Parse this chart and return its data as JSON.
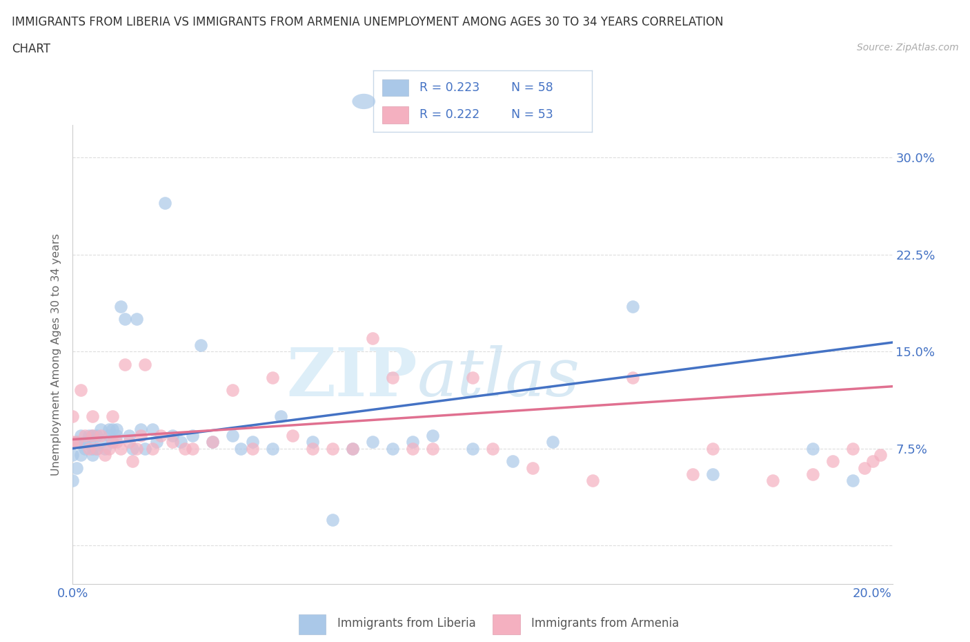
{
  "title_line1": "IMMIGRANTS FROM LIBERIA VS IMMIGRANTS FROM ARMENIA UNEMPLOYMENT AMONG AGES 30 TO 34 YEARS CORRELATION",
  "title_line2": "CHART",
  "source": "Source: ZipAtlas.com",
  "ylabel": "Unemployment Among Ages 30 to 34 years",
  "xlim": [
    0.0,
    0.205
  ],
  "ylim": [
    -0.03,
    0.325
  ],
  "yticks": [
    0.0,
    0.075,
    0.15,
    0.225,
    0.3
  ],
  "ytick_labels": [
    "",
    "7.5%",
    "15.0%",
    "22.5%",
    "30.0%"
  ],
  "liberia_color": "#aac8e8",
  "armenia_color": "#f4b0c0",
  "liberia_line_color": "#4472c4",
  "armenia_line_color": "#e07090",
  "legend_text_color": "#4472c4",
  "liberia_scatter_x": [
    0.0,
    0.0,
    0.001,
    0.001,
    0.002,
    0.002,
    0.003,
    0.003,
    0.004,
    0.004,
    0.005,
    0.005,
    0.005,
    0.006,
    0.006,
    0.007,
    0.007,
    0.008,
    0.009,
    0.009,
    0.01,
    0.01,
    0.011,
    0.011,
    0.012,
    0.013,
    0.014,
    0.015,
    0.016,
    0.017,
    0.018,
    0.02,
    0.021,
    0.023,
    0.025,
    0.027,
    0.03,
    0.032,
    0.035,
    0.04,
    0.042,
    0.045,
    0.05,
    0.052,
    0.06,
    0.065,
    0.07,
    0.075,
    0.08,
    0.085,
    0.09,
    0.1,
    0.11,
    0.12,
    0.14,
    0.16,
    0.185,
    0.195
  ],
  "liberia_scatter_y": [
    0.05,
    0.07,
    0.08,
    0.06,
    0.07,
    0.085,
    0.08,
    0.075,
    0.08,
    0.085,
    0.07,
    0.075,
    0.085,
    0.075,
    0.085,
    0.08,
    0.09,
    0.075,
    0.085,
    0.09,
    0.08,
    0.09,
    0.085,
    0.09,
    0.185,
    0.175,
    0.085,
    0.075,
    0.175,
    0.09,
    0.075,
    0.09,
    0.08,
    0.265,
    0.085,
    0.08,
    0.085,
    0.155,
    0.08,
    0.085,
    0.075,
    0.08,
    0.075,
    0.1,
    0.08,
    0.02,
    0.075,
    0.08,
    0.075,
    0.08,
    0.085,
    0.075,
    0.065,
    0.08,
    0.185,
    0.055,
    0.075,
    0.05
  ],
  "armenia_scatter_x": [
    0.0,
    0.0,
    0.001,
    0.002,
    0.003,
    0.004,
    0.005,
    0.005,
    0.006,
    0.007,
    0.008,
    0.009,
    0.01,
    0.01,
    0.011,
    0.012,
    0.013,
    0.014,
    0.015,
    0.016,
    0.017,
    0.018,
    0.02,
    0.022,
    0.025,
    0.028,
    0.03,
    0.035,
    0.04,
    0.045,
    0.05,
    0.055,
    0.06,
    0.065,
    0.07,
    0.075,
    0.08,
    0.085,
    0.09,
    0.1,
    0.105,
    0.115,
    0.13,
    0.14,
    0.155,
    0.16,
    0.175,
    0.185,
    0.19,
    0.195,
    0.198,
    0.2,
    0.202
  ],
  "armenia_scatter_y": [
    0.08,
    0.1,
    0.08,
    0.12,
    0.085,
    0.075,
    0.1,
    0.085,
    0.075,
    0.085,
    0.07,
    0.075,
    0.08,
    0.1,
    0.08,
    0.075,
    0.14,
    0.08,
    0.065,
    0.075,
    0.085,
    0.14,
    0.075,
    0.085,
    0.08,
    0.075,
    0.075,
    0.08,
    0.12,
    0.075,
    0.13,
    0.085,
    0.075,
    0.075,
    0.075,
    0.16,
    0.13,
    0.075,
    0.075,
    0.13,
    0.075,
    0.06,
    0.05,
    0.13,
    0.055,
    0.075,
    0.05,
    0.055,
    0.065,
    0.075,
    0.06,
    0.065,
    0.07
  ],
  "liberia_trend_x": [
    0.0,
    0.205
  ],
  "liberia_trend_y": [
    0.075,
    0.157
  ],
  "armenia_trend_x": [
    0.0,
    0.205
  ],
  "armenia_trend_y": [
    0.082,
    0.123
  ],
  "background_color": "#ffffff",
  "grid_color": "#dddddd"
}
